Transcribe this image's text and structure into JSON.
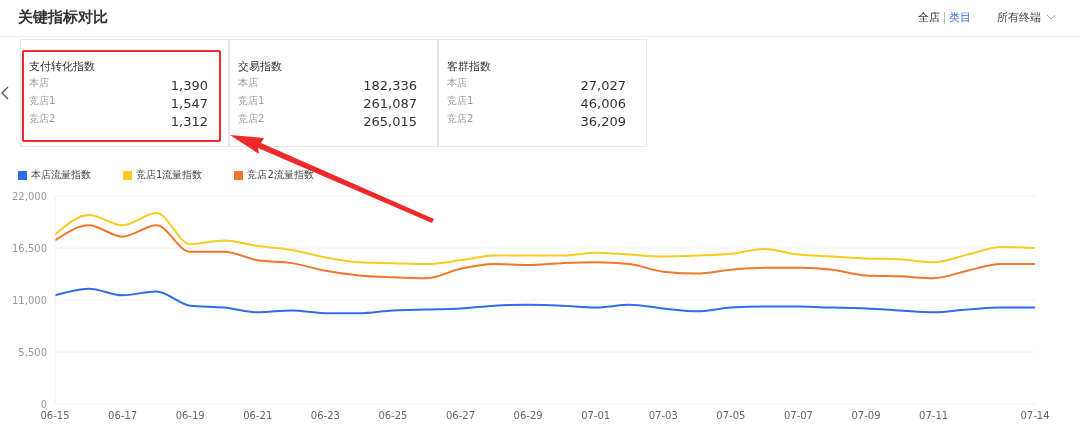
{
  "chart_data": [
    {
      "type": "other",
      "title": "关键指标对比",
      "annotations": [
        "全店",
        "类目",
        "所有终端",
        "支付转化指数",
        "本店",
        "1,390",
        "竞店1",
        "1,547",
        "竞店2",
        "1,312",
        "交易指数",
        "本店",
        "182,336",
        "竞店1",
        "261,087",
        "竞店2",
        "265,015",
        "客群指数",
        "本店",
        "27,027",
        "竞店1",
        "46,006",
        "竞店2",
        "36,209"
      ]
    },
    {
      "type": "line",
      "categories": [
        "06-15",
        null,
        "06-17",
        null,
        "06-19",
        null,
        "06-21",
        null,
        "06-23",
        null,
        "06-25",
        null,
        "06-27",
        null,
        "06-29",
        null,
        "07-01",
        null,
        "07-03",
        null,
        "07-05",
        null,
        "07-07",
        null,
        "07-09",
        null,
        "07-11",
        null,
        null,
        "07-14"
      ],
      "series": [
        {
          "name": "本店流量指数",
          "color": "#2f6ee8",
          "values": [
            11500,
            12200,
            11500,
            11900,
            10400,
            10200,
            9700,
            9900,
            9600,
            9600,
            9900,
            10000,
            10100,
            10400,
            10500,
            10400,
            10200,
            10500,
            10100,
            9800,
            10200,
            10300,
            10300,
            10200,
            10100,
            9900,
            9700,
            10000,
            10200,
            10200
          ]
        },
        {
          "name": "竞店1流量指数",
          "color": "#f5cc1f",
          "values": [
            17900,
            20000,
            18900,
            20200,
            16900,
            17300,
            16700,
            16300,
            15500,
            15000,
            14900,
            14800,
            15200,
            15700,
            15700,
            15700,
            16000,
            15800,
            15600,
            15700,
            15900,
            16400,
            15800,
            15600,
            15400,
            15300,
            15000,
            15800,
            16600,
            16500
          ]
        },
        {
          "name": "竞店2流量指数",
          "color": "#f0762e",
          "values": [
            17300,
            18900,
            17700,
            18900,
            16100,
            16100,
            15200,
            14900,
            14100,
            13600,
            13400,
            13300,
            14300,
            14800,
            14700,
            14900,
            15000,
            14800,
            14000,
            13800,
            14200,
            14400,
            14400,
            14200,
            13600,
            13500,
            13300,
            14100,
            14800,
            14800
          ]
        }
      ],
      "ylim": [
        0,
        22000
      ],
      "yticks": [
        {
          "value": 0,
          "label": "0"
        },
        {
          "value": 5500,
          "label": "5,500"
        },
        {
          "value": 11000,
          "label": "11,000"
        },
        {
          "value": 16500,
          "label": "16,500"
        },
        {
          "value": 22000,
          "label": "22,000"
        }
      ],
      "grid": "y",
      "legend": "top left",
      "marker": "none",
      "line_style": "solid"
    }
  ]
}
